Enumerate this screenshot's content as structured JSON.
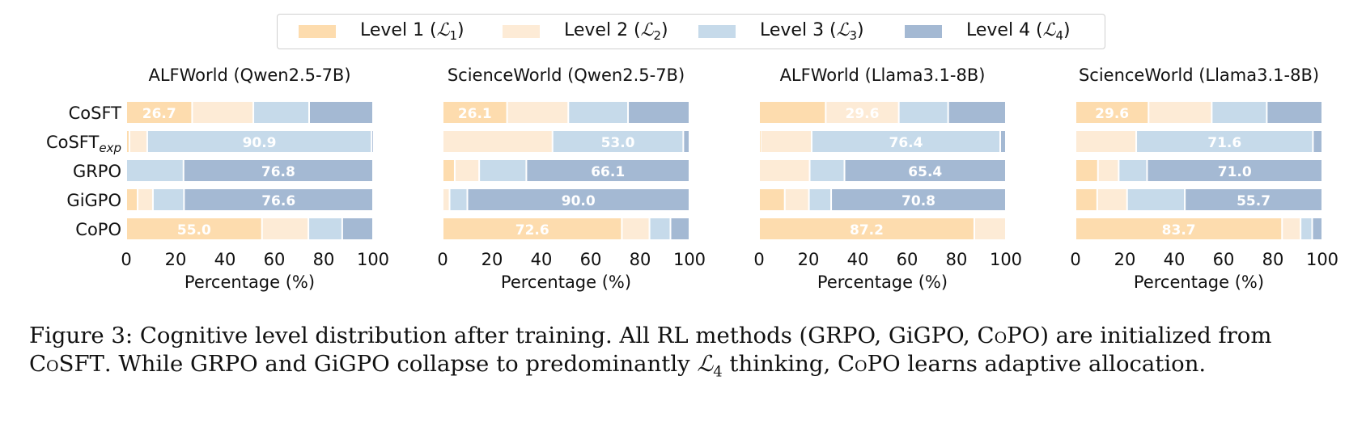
{
  "legend": [
    {
      "key": "L1",
      "label": "Level 1 (",
      "sym": "ℒ",
      "sub": "1",
      "close": ")",
      "color": "#FDDCAE"
    },
    {
      "key": "L2",
      "label": "Level 2 (",
      "sym": "ℒ",
      "sub": "2",
      "close": ")",
      "color": "#FDEBD6"
    },
    {
      "key": "L3",
      "label": "Level 3 (",
      "sym": "ℒ",
      "sub": "3",
      "close": ")",
      "color": "#C6DAEA"
    },
    {
      "key": "L4",
      "label": "Level 4 (",
      "sym": "ℒ",
      "sub": "4",
      "close": ")",
      "color": "#A4B9D3"
    }
  ],
  "caption": {
    "prefix": "Figure 3: Cognitive level distribution after training. All RL methods (GRPO, GiGPO, ",
    "copo1": "CoPO",
    "mid1": ") are initialized from ",
    "cosft": "CoSFT",
    "mid2": ". While GRPO and GiGPO collapse to predominantly ",
    "sym": "ℒ",
    "sub": "4",
    "mid3": " thinking, ",
    "copo2": "CoPO",
    "suffix": " learns adaptive allocation."
  },
  "chart_data": [
    {
      "type": "bar",
      "orientation": "horizontal-stacked",
      "title": "ALFWorld (Qwen2.5-7B)",
      "xlabel": "Percentage (%)",
      "xlim": [
        0,
        100
      ],
      "xticks": [
        0,
        20,
        40,
        60,
        80,
        100
      ],
      "categories": [
        "CoSFT",
        "CoSFT_exp",
        "GRPO",
        "GiGPO",
        "CoPO"
      ],
      "series": [
        {
          "name": "Level 1",
          "values": [
            26.7,
            1.3,
            0.0,
            4.6,
            55.0
          ]
        },
        {
          "name": "Level 2",
          "values": [
            24.8,
            7.2,
            0.0,
            6.2,
            18.8
          ]
        },
        {
          "name": "Level 3",
          "values": [
            22.6,
            90.9,
            23.2,
            12.6,
            13.7
          ]
        },
        {
          "name": "Level 4",
          "values": [
            25.9,
            0.6,
            76.8,
            76.6,
            12.5
          ]
        }
      ],
      "annotations": [
        {
          "category": "CoSFT",
          "series": "Level 1",
          "text": "26.7"
        },
        {
          "category": "CoSFT_exp",
          "series": "Level 3",
          "text": "90.9"
        },
        {
          "category": "GRPO",
          "series": "Level 4",
          "text": "76.8"
        },
        {
          "category": "GiGPO",
          "series": "Level 4",
          "text": "76.6"
        },
        {
          "category": "CoPO",
          "series": "Level 1",
          "text": "55.0"
        }
      ]
    },
    {
      "type": "bar",
      "orientation": "horizontal-stacked",
      "title": "ScienceWorld (Qwen2.5-7B)",
      "xlabel": "Percentage (%)",
      "xlim": [
        0,
        100
      ],
      "xticks": [
        0,
        20,
        40,
        60,
        80,
        100
      ],
      "categories": [
        "CoSFT",
        "CoSFT_exp",
        "GRPO",
        "GiGPO",
        "CoPO"
      ],
      "series": [
        {
          "name": "Level 1",
          "values": [
            26.1,
            0.0,
            4.9,
            0.0,
            72.6
          ]
        },
        {
          "name": "Level 2",
          "values": [
            24.8,
            44.5,
            9.9,
            2.8,
            11.2
          ]
        },
        {
          "name": "Level 3",
          "values": [
            24.2,
            53.0,
            19.1,
            7.2,
            8.5
          ]
        },
        {
          "name": "Level 4",
          "values": [
            24.9,
            2.5,
            66.1,
            90.0,
            7.7
          ]
        }
      ],
      "annotations": [
        {
          "category": "CoSFT",
          "series": "Level 1",
          "text": "26.1"
        },
        {
          "category": "CoSFT_exp",
          "series": "Level 3",
          "text": "53.0"
        },
        {
          "category": "GRPO",
          "series": "Level 4",
          "text": "66.1"
        },
        {
          "category": "GiGPO",
          "series": "Level 4",
          "text": "90.0"
        },
        {
          "category": "CoPO",
          "series": "Level 1",
          "text": "72.6"
        }
      ]
    },
    {
      "type": "bar",
      "orientation": "horizontal-stacked",
      "title": "ALFWorld (Llama3.1-8B)",
      "xlabel": "Percentage (%)",
      "xlim": [
        0,
        100
      ],
      "xticks": [
        0,
        20,
        40,
        60,
        80,
        100
      ],
      "categories": [
        "CoSFT",
        "CoSFT_exp",
        "GRPO",
        "GiGPO",
        "CoPO"
      ],
      "series": [
        {
          "name": "Level 1",
          "values": [
            27.0,
            0.6,
            0.0,
            10.4,
            87.2
          ]
        },
        {
          "name": "Level 2",
          "values": [
            29.6,
            20.7,
            20.5,
            9.8,
            12.8
          ]
        },
        {
          "name": "Level 3",
          "values": [
            20.0,
            76.4,
            14.1,
            9.0,
            0.0
          ]
        },
        {
          "name": "Level 4",
          "values": [
            23.4,
            2.3,
            65.4,
            70.8,
            0.0
          ]
        }
      ],
      "annotations": [
        {
          "category": "CoSFT",
          "series": "Level 2",
          "text": "29.6"
        },
        {
          "category": "CoSFT_exp",
          "series": "Level 3",
          "text": "76.4"
        },
        {
          "category": "GRPO",
          "series": "Level 4",
          "text": "65.4"
        },
        {
          "category": "GiGPO",
          "series": "Level 4",
          "text": "70.8"
        },
        {
          "category": "CoPO",
          "series": "Level 1",
          "text": "87.2"
        }
      ]
    },
    {
      "type": "bar",
      "orientation": "horizontal-stacked",
      "title": "ScienceWorld (Llama3.1-8B)",
      "xlabel": "Percentage (%)",
      "xlim": [
        0,
        100
      ],
      "xticks": [
        0,
        20,
        40,
        60,
        80,
        100
      ],
      "categories": [
        "CoSFT",
        "CoSFT_exp",
        "GRPO",
        "GiGPO",
        "CoPO"
      ],
      "series": [
        {
          "name": "Level 1",
          "values": [
            29.6,
            0.0,
            9.1,
            8.8,
            83.7
          ]
        },
        {
          "name": "Level 2",
          "values": [
            25.6,
            24.6,
            8.4,
            12.1,
            7.5
          ]
        },
        {
          "name": "Level 3",
          "values": [
            22.3,
            71.6,
            11.5,
            23.4,
            4.7
          ]
        },
        {
          "name": "Level 4",
          "values": [
            22.5,
            3.8,
            71.0,
            55.7,
            4.1
          ]
        }
      ],
      "annotations": [
        {
          "category": "CoSFT",
          "series": "Level 1",
          "text": "29.6"
        },
        {
          "category": "CoSFT_exp",
          "series": "Level 3",
          "text": "71.6"
        },
        {
          "category": "GRPO",
          "series": "Level 4",
          "text": "71.0"
        },
        {
          "category": "GiGPO",
          "series": "Level 4",
          "text": "55.7"
        },
        {
          "category": "CoPO",
          "series": "Level 1",
          "text": "83.7"
        }
      ]
    }
  ],
  "category_labels": [
    {
      "main": "CoSFT",
      "sub": ""
    },
    {
      "main": "CoSFT",
      "sub": "exp"
    },
    {
      "main": "GRPO",
      "sub": ""
    },
    {
      "main": "GiGPO",
      "sub": ""
    },
    {
      "main": "CoPO",
      "sub": ""
    }
  ]
}
